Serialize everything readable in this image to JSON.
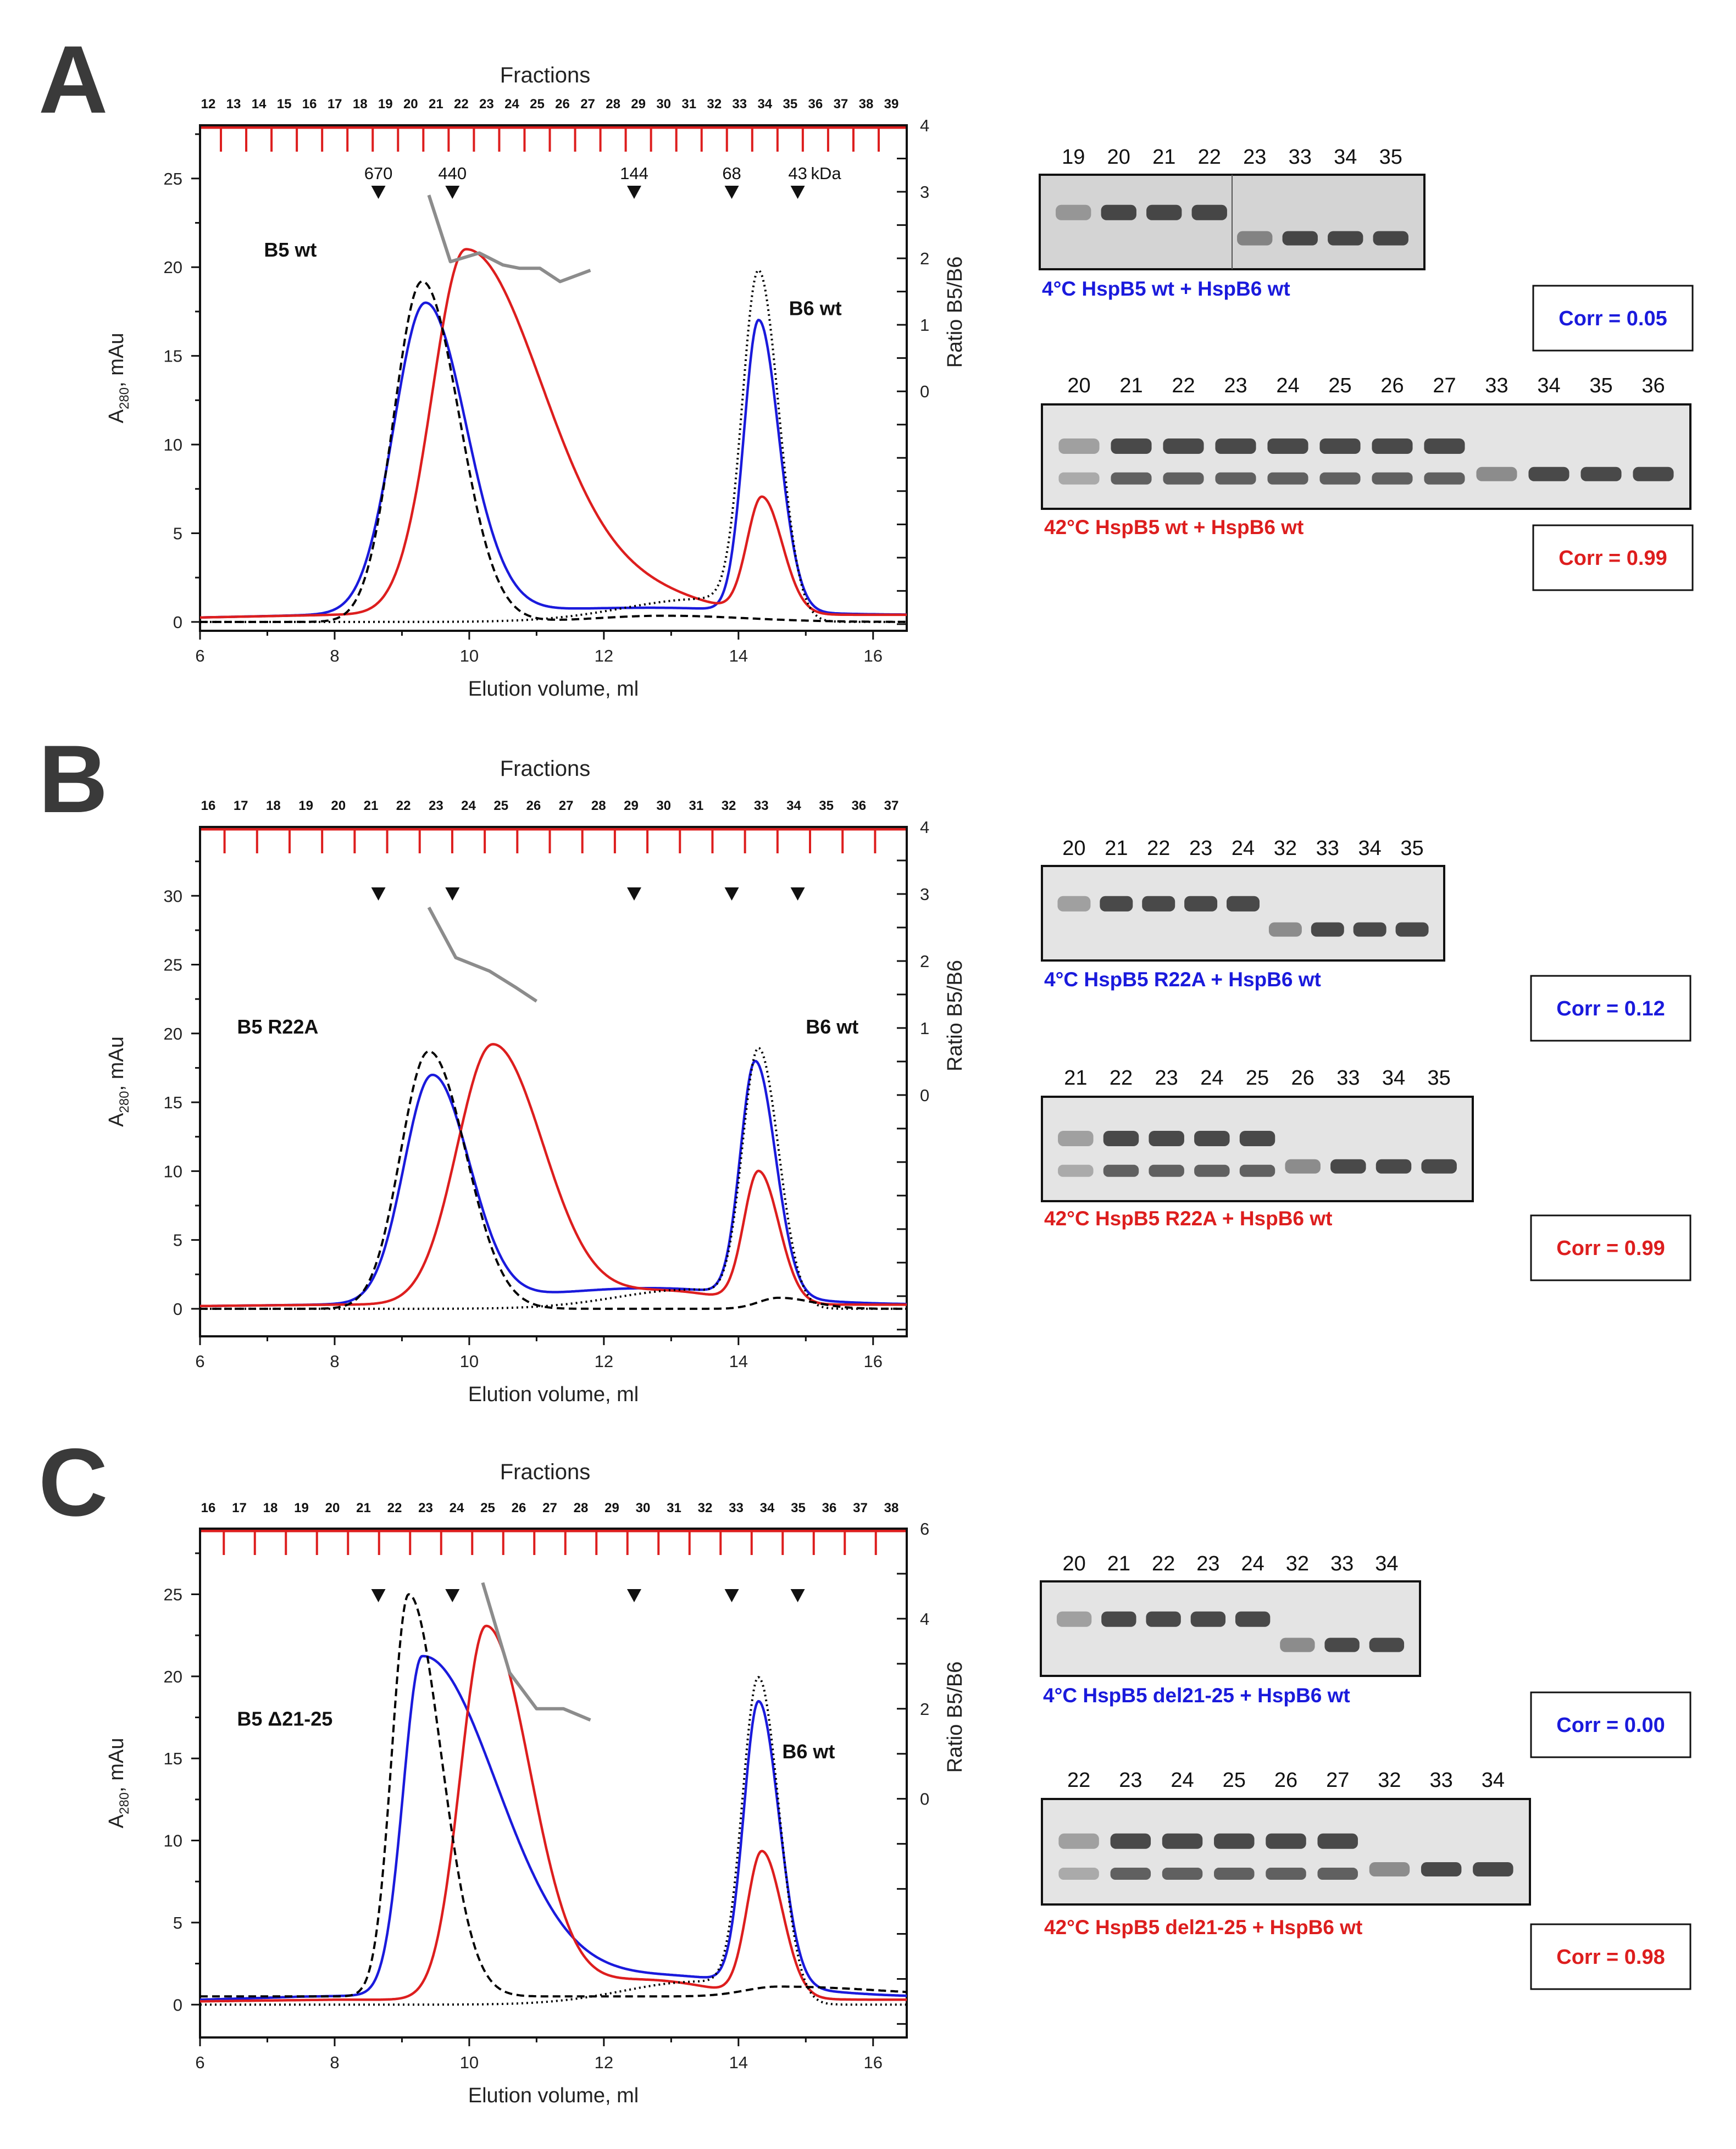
{
  "colors": {
    "blue": "#1a1adc",
    "red": "#dd1e1e",
    "black": "#000000",
    "gray": "#8c8c8c",
    "frac": "#dd1e1e"
  },
  "panels": [
    {
      "letter": "A",
      "fractions_title": "Fractions",
      "fractions": [
        "12",
        "13",
        "14",
        "15",
        "16",
        "17",
        "18",
        "19",
        "20",
        "21",
        "22",
        "23",
        "24",
        "25",
        "26",
        "27",
        "28",
        "29",
        "30",
        "31",
        "32",
        "33",
        "34",
        "35",
        "36",
        "37",
        "38",
        "39"
      ],
      "mw_markers": {
        "labels": [
          "670",
          "440",
          "144",
          "68",
          "43"
        ],
        "unit": "kDa",
        "positions_ml": [
          8.65,
          9.75,
          12.45,
          13.9,
          14.88
        ]
      },
      "peak_labels": {
        "left": "B5 wt",
        "right": "B6 wt"
      },
      "chart_data": {
        "type": "line",
        "xlabel": "Elution volume, ml",
        "ylabel": "A280, mAu",
        "ylabel_main": "A",
        "ylabel_sub": "280",
        "ylabel_tail": ", mAu",
        "y2label": "Ratio B5/B6",
        "xlim": [
          6,
          16.5
        ],
        "ylim": [
          -0.5,
          28
        ],
        "x_ticks": [
          "6",
          "8",
          "10",
          "12",
          "14",
          "16"
        ],
        "y_ticks": [
          "0",
          "5",
          "10",
          "15",
          "20",
          "25"
        ],
        "y2lim": [
          -3.6,
          4
        ],
        "y2_ticks": [
          "0",
          "1",
          "2",
          "3",
          "4"
        ],
        "series": [
          {
            "name": "4 °C mixture (blue)",
            "color": "blue",
            "dash": "solid",
            "peaks": [
              [
                6.0,
                0.25
              ],
              [
                8.0,
                0.4
              ],
              [
                9.35,
                17.5,
                0.47,
                0.6
              ],
              [
                12.7,
                0.4,
                2.0,
                1.5
              ],
              [
                14.3,
                16.4,
                0.22,
                0.3
              ]
            ]
          },
          {
            "name": "42 °C mixture (red)",
            "color": "red",
            "dash": "solid",
            "peaks": [
              [
                6.0,
                0.25
              ],
              [
                8.0,
                0.4
              ],
              [
                9.95,
                20.6,
                0.5,
                1.15
              ],
              [
                12.6,
                1.0,
                0.9,
                0.9
              ],
              [
                14.35,
                6.5,
                0.22,
                0.3
              ]
            ]
          },
          {
            "name": "HspB5 alone (dashed)",
            "color": "black",
            "dash": "dashed",
            "peaks": [
              [
                9.3,
                19.2,
                0.42,
                0.55
              ],
              [
                12.9,
                0.35,
                1.0,
                1.2
              ]
            ]
          },
          {
            "name": "HspB6 alone (dotted)",
            "color": "black",
            "dash": "dotted",
            "peaks": [
              [
                14.3,
                19.3,
                0.24,
                0.3
              ],
              [
                13.5,
                1.3,
                1.2,
                0.6
              ]
            ]
          }
        ],
        "ratio_line": {
          "name": "Ratio B5/B6",
          "axis": "right",
          "x": [
            9.4,
            9.72,
            10.15,
            10.5,
            10.75,
            11.05,
            11.35,
            11.8
          ],
          "y": [
            2.95,
            1.95,
            2.08,
            1.9,
            1.85,
            1.85,
            1.65,
            1.82
          ]
        }
      },
      "gels": [
        {
          "lanes": [
            "19",
            "20",
            "21",
            "22",
            "23",
            "33",
            "34",
            "35"
          ],
          "caption": "4°C HspB5 wt + HspB6 wt",
          "caption_color": "blue",
          "corr": "Corr = 0.05",
          "corr_color": "blue"
        },
        {
          "lanes": [
            "20",
            "21",
            "22",
            "23",
            "24",
            "25",
            "26",
            "27",
            "33",
            "34",
            "35",
            "36"
          ],
          "caption": "42°C HspB5 wt + HspB6 wt",
          "caption_color": "red",
          "corr": "Corr = 0.99",
          "corr_color": "red"
        }
      ]
    },
    {
      "letter": "B",
      "fractions_title": "Fractions",
      "fractions": [
        "16",
        "17",
        "18",
        "19",
        "20",
        "21",
        "22",
        "23",
        "24",
        "25",
        "26",
        "27",
        "28",
        "29",
        "30",
        "31",
        "32",
        "33",
        "34",
        "35",
        "36",
        "37"
      ],
      "mw_markers": {
        "labels": [],
        "unit": "",
        "positions_ml": [
          8.65,
          9.75,
          12.45,
          13.9,
          14.88
        ]
      },
      "peak_labels": {
        "left": "B5 R22A",
        "right": "B6 wt"
      },
      "chart_data": {
        "type": "line",
        "xlabel": "Elution volume, ml",
        "ylabel": "A280, mAu",
        "ylabel_main": "A",
        "ylabel_sub": "280",
        "ylabel_tail": ", mAu",
        "y2label": "Ratio B5/B6",
        "xlim": [
          6,
          16.5
        ],
        "ylim": [
          -2,
          35
        ],
        "x_ticks": [
          "6",
          "8",
          "10",
          "12",
          "14",
          "16"
        ],
        "y_ticks": [
          "0",
          "5",
          "10",
          "15",
          "20",
          "25",
          "30"
        ],
        "y2lim": [
          -3.6,
          4
        ],
        "y2_ticks": [
          "0",
          "1",
          "2",
          "3",
          "4"
        ],
        "series": [
          {
            "name": "4 °C mixture (blue)",
            "color": "blue",
            "dash": "solid",
            "peaks": [
              [
                6.0,
                0.2
              ],
              [
                8.0,
                0.3
              ],
              [
                9.45,
                16.5,
                0.42,
                0.55
              ],
              [
                12.7,
                1.2,
                1.7,
                1.5
              ],
              [
                14.25,
                17.0,
                0.22,
                0.3
              ]
            ]
          },
          {
            "name": "42 °C mixture (red)",
            "color": "red",
            "dash": "solid",
            "peaks": [
              [
                6.0,
                0.2
              ],
              [
                8.0,
                0.3
              ],
              [
                10.35,
                18.9,
                0.53,
                0.75
              ],
              [
                12.9,
                1.0,
                0.9,
                0.8
              ],
              [
                14.3,
                9.5,
                0.22,
                0.3
              ]
            ]
          },
          {
            "name": "HspB5 alone (dashed)",
            "color": "black",
            "dash": "dashed",
            "peaks": [
              [
                9.4,
                18.7,
                0.42,
                0.55
              ],
              [
                14.6,
                0.8,
                0.3,
                0.5
              ]
            ]
          },
          {
            "name": "HspB6 alone (dotted)",
            "color": "black",
            "dash": "dotted",
            "peaks": [
              [
                14.3,
                18.6,
                0.24,
                0.3
              ],
              [
                13.3,
                1.4,
                1.1,
                0.6
              ]
            ]
          }
        ],
        "ratio_line": {
          "name": "Ratio B5/B6",
          "axis": "right",
          "x": [
            9.4,
            9.8,
            10.3,
            10.7,
            11.0
          ],
          "y": [
            2.8,
            2.05,
            1.85,
            1.6,
            1.4
          ]
        }
      },
      "gels": [
        {
          "lanes": [
            "20",
            "21",
            "22",
            "23",
            "24",
            "32",
            "33",
            "34",
            "35"
          ],
          "caption": "4°C HspB5 R22A + HspB6 wt",
          "caption_color": "blue",
          "corr": "Corr = 0.12",
          "corr_color": "blue"
        },
        {
          "lanes": [
            "21",
            "22",
            "23",
            "24",
            "25",
            "26",
            "33",
            "34",
            "35"
          ],
          "caption": "42°C HspB5 R22A + HspB6 wt",
          "caption_color": "red",
          "corr": "Corr = 0.99",
          "corr_color": "red"
        }
      ]
    },
    {
      "letter": "C",
      "fractions_title": "Fractions",
      "fractions": [
        "16",
        "17",
        "18",
        "19",
        "20",
        "21",
        "22",
        "23",
        "24",
        "25",
        "26",
        "27",
        "28",
        "29",
        "30",
        "31",
        "32",
        "33",
        "34",
        "35",
        "36",
        "37",
        "38"
      ],
      "mw_markers": {
        "labels": [],
        "unit": "",
        "positions_ml": [
          8.65,
          9.75,
          12.45,
          13.9,
          14.88
        ]
      },
      "peak_labels": {
        "left": "B5 Δ21-25",
        "right": "B6 wt"
      },
      "chart_data": {
        "type": "line",
        "xlabel": "Elution volume, ml",
        "ylabel": "A280, mAu",
        "ylabel_main": "A",
        "ylabel_sub": "280",
        "ylabel_tail": ", mAu",
        "y2label": "Ratio B5/B6",
        "xlim": [
          6,
          16.5
        ],
        "ylim": [
          -2,
          29
        ],
        "x_ticks": [
          "6",
          "8",
          "10",
          "12",
          "14",
          "16"
        ],
        "y_ticks": [
          "0",
          "5",
          "10",
          "15",
          "20",
          "25"
        ],
        "y2lim": [
          -5.3,
          6
        ],
        "y2_ticks": [
          "0",
          "2",
          "4",
          "6"
        ],
        "series": [
          {
            "name": "4 °C mixture (blue)",
            "color": "blue",
            "dash": "solid",
            "peaks": [
              [
                6.0,
                0.3
              ],
              [
                7.5,
                0.45
              ],
              [
                9.3,
                20.5,
                0.28,
                1.1
              ],
              [
                12.8,
                1.3,
                2.0,
                1.6
              ],
              [
                14.3,
                17.2,
                0.22,
                0.3
              ]
            ]
          },
          {
            "name": "42 °C mixture (red)",
            "color": "red",
            "dash": "solid",
            "peaks": [
              [
                6.0,
                0.2
              ],
              [
                8.0,
                0.3
              ],
              [
                10.25,
                22.7,
                0.38,
                0.65
              ],
              [
                12.6,
                1.2,
                1.0,
                1.0
              ],
              [
                14.35,
                8.8,
                0.22,
                0.3
              ]
            ]
          },
          {
            "name": "HspB5 alone (dashed)",
            "color": "black",
            "dash": "dashed",
            "peaks": [
              [
                6.0,
                0.5
              ],
              [
                9.1,
                24.5,
                0.25,
                0.48
              ],
              [
                14.6,
                0.6,
                0.5,
                1.5
              ]
            ]
          },
          {
            "name": "HspB6 alone (dotted)",
            "color": "black",
            "dash": "dotted",
            "peaks": [
              [
                14.3,
                19.5,
                0.24,
                0.3
              ],
              [
                13.4,
                1.4,
                1.1,
                0.6
              ]
            ]
          }
        ],
        "ratio_line": {
          "name": "Ratio B5/B6",
          "axis": "right",
          "x": [
            10.2,
            10.6,
            11.0,
            11.4,
            11.8
          ],
          "y": [
            4.8,
            2.8,
            2.0,
            2.0,
            1.75
          ]
        }
      },
      "gels": [
        {
          "lanes": [
            "20",
            "21",
            "22",
            "23",
            "24",
            "32",
            "33",
            "34"
          ],
          "caption": "4°C HspB5 del21-25 + HspB6 wt",
          "caption_color": "blue",
          "corr": "Corr = 0.00",
          "corr_color": "blue"
        },
        {
          "lanes": [
            "22",
            "23",
            "24",
            "25",
            "26",
            "27",
            "32",
            "33",
            "34"
          ],
          "caption": "42°C HspB5 del21-25 + HspB6 wt",
          "caption_color": "red",
          "corr": "Corr = 0.98",
          "corr_color": "red"
        }
      ]
    }
  ]
}
